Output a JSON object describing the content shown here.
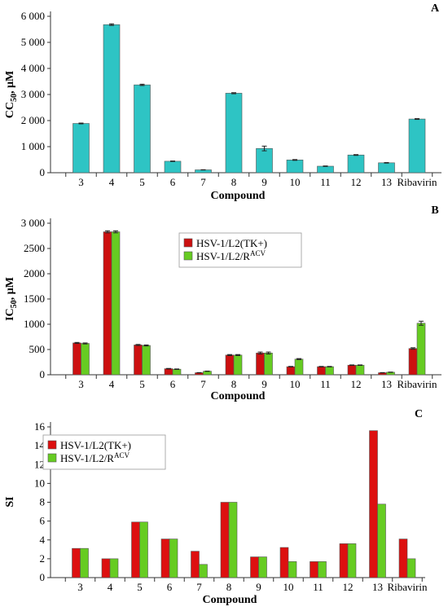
{
  "chart_data": [
    {
      "panel": "A",
      "type": "bar",
      "ylabel_main": "CC",
      "ylabel_sub": "50",
      "ylabel_tail": ", µM",
      "xlabel": "Compound",
      "categories": [
        "3",
        "4",
        "5",
        "6",
        "7",
        "8",
        "9",
        "10",
        "11",
        "12",
        "13",
        "Ribavirin"
      ],
      "series": [
        {
          "color": "#2ec4c4",
          "values": [
            1890,
            5680,
            3370,
            440,
            110,
            3050,
            930,
            490,
            250,
            680,
            380,
            2060
          ],
          "errors": [
            15,
            30,
            25,
            10,
            5,
            20,
            90,
            15,
            10,
            15,
            10,
            15
          ]
        }
      ],
      "ylim": [
        0,
        6000
      ],
      "yticks": [
        0,
        1000,
        2000,
        3000,
        4000,
        5000,
        6000
      ],
      "ytick_labels": [
        "0",
        "1 000",
        "2 000",
        "3 000",
        "4 000",
        "5 000",
        "6 000"
      ],
      "grid": false,
      "legend": []
    },
    {
      "panel": "B",
      "type": "bar",
      "ylabel_main": "IC",
      "ylabel_sub": "50",
      "ylabel_tail": ", µM",
      "xlabel": "Compound",
      "categories": [
        "3",
        "4",
        "5",
        "6",
        "7",
        "8",
        "9",
        "10",
        "11",
        "12",
        "13",
        "Ribavirin"
      ],
      "series": [
        {
          "name": "HSV-1/L2(TK+)",
          "color": "#cc1010",
          "values": [
            630,
            2830,
            590,
            120,
            40,
            390,
            430,
            160,
            160,
            190,
            40,
            520
          ],
          "errors": [
            10,
            20,
            10,
            5,
            3,
            10,
            20,
            5,
            5,
            5,
            3,
            15
          ]
        },
        {
          "name": "HSV-1/L2/R",
          "name_sup": "ACV",
          "color": "#66cc22",
          "values": [
            620,
            2830,
            580,
            110,
            70,
            390,
            430,
            310,
            160,
            190,
            50,
            1020
          ],
          "errors": [
            10,
            20,
            10,
            5,
            3,
            10,
            20,
            10,
            5,
            5,
            3,
            40
          ]
        }
      ],
      "ylim": [
        0,
        3000
      ],
      "yticks": [
        0,
        500,
        1000,
        1500,
        2000,
        2500,
        3000
      ],
      "ytick_labels": [
        "0",
        "500",
        "1000",
        "1500",
        "2000",
        "2500",
        "3 000"
      ],
      "grid": false,
      "legend": "upper-center"
    },
    {
      "panel": "C",
      "type": "bar",
      "ylabel_main": "SI",
      "ylabel_sub": "",
      "ylabel_tail": "",
      "xlabel": "Compound",
      "categories": [
        "3",
        "4",
        "5",
        "6",
        "7",
        "8",
        "9",
        "10",
        "11",
        "12",
        "13",
        "Ribavirin"
      ],
      "series": [
        {
          "name": "HSV-1/L2(TK+)",
          "color": "#dd1010",
          "values": [
            3.1,
            2.0,
            5.9,
            4.1,
            2.8,
            8.0,
            2.2,
            3.2,
            1.7,
            3.6,
            15.6,
            4.1
          ]
        },
        {
          "name": "HSV-1/L2/R",
          "name_sup": "ACV",
          "color": "#66cc22",
          "values": [
            3.1,
            2.0,
            5.9,
            4.1,
            1.4,
            8.0,
            2.2,
            1.7,
            1.7,
            3.6,
            7.8,
            2.0
          ]
        }
      ],
      "ylim": [
        0,
        16
      ],
      "yticks": [
        0,
        2,
        4,
        6,
        8,
        10,
        12,
        14,
        16
      ],
      "ytick_labels": [
        "0",
        "2",
        "4",
        "6",
        "8",
        "10",
        "12",
        "14",
        "16"
      ],
      "grid": false,
      "legend": "upper-left"
    }
  ]
}
